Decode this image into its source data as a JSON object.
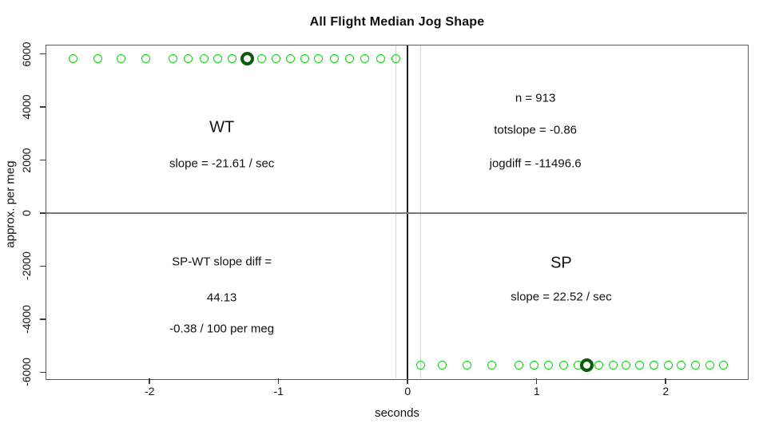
{
  "chart_data": {
    "type": "scatter",
    "title": "All Flight Median Jog Shape",
    "xlabel": "seconds",
    "ylabel": "approx. per meg",
    "xlim": [
      -2.8,
      2.63
    ],
    "ylim": [
      -6230,
      6320
    ],
    "xticks": [
      -2,
      -1,
      0,
      1,
      2
    ],
    "yticks": [
      -6000,
      -4000,
      -2000,
      0,
      2000,
      4000,
      6000
    ],
    "grid": false,
    "legend": "none",
    "frame_color": "#5a5a5a",
    "marker_color": "#00d800",
    "highlight_color": "#0a5c0a",
    "series": [
      {
        "name": "WT",
        "marker": "open-circle",
        "color": "#00d800",
        "y": 5830,
        "x": [
          -2.59,
          -2.4,
          -2.22,
          -2.03,
          -1.82,
          -1.7,
          -1.58,
          -1.47,
          -1.36,
          -1.24,
          -1.13,
          -1.02,
          -0.91,
          -0.8,
          -0.69,
          -0.57,
          -0.45,
          -0.33,
          -0.21,
          -0.09
        ],
        "highlight_index": 9,
        "highlight_x": -1.24
      },
      {
        "name": "SP",
        "marker": "open-circle",
        "color": "#00d800",
        "y": -5720,
        "x": [
          0.1,
          0.27,
          0.46,
          0.65,
          0.86,
          0.98,
          1.09,
          1.21,
          1.32,
          1.39,
          1.48,
          1.59,
          1.69,
          1.8,
          1.91,
          2.02,
          2.12,
          2.23,
          2.34,
          2.45
        ],
        "highlight_index": 9,
        "highlight_x": 1.39
      }
    ],
    "vlines": [
      {
        "id": "window-start",
        "x": -0.09,
        "color": "#d4d4d4"
      },
      {
        "id": "zero",
        "x": 0,
        "color": "#1c1c1c"
      },
      {
        "id": "window-end",
        "x": 0.1,
        "color": "#d4d4d4"
      }
    ],
    "hlines": [
      {
        "id": "zero",
        "y": 0,
        "color": "#7a7a7a"
      }
    ],
    "annotations": [
      {
        "id": "wt-label",
        "text": "WT",
        "x": -1.44,
        "y": 3220,
        "font_size": 20
      },
      {
        "id": "wt-slope",
        "text": "slope = -21.61 / sec",
        "x": -1.44,
        "y": 1870,
        "font_size": 15
      },
      {
        "id": "n-count",
        "text": "n = 913",
        "x": 0.99,
        "y": 4330,
        "font_size": 15
      },
      {
        "id": "totslope",
        "text": "totslope = -0.86",
        "x": 0.99,
        "y": 3130,
        "font_size": 15
      },
      {
        "id": "jogdiff",
        "text": "jogdiff = -11496.6",
        "x": 0.99,
        "y": 1870,
        "font_size": 15
      },
      {
        "id": "spwt-diff-label",
        "text": "SP-WT slope diff =",
        "x": -1.44,
        "y": -1840,
        "font_size": 15
      },
      {
        "id": "spwt-diff-value",
        "text": "44.13",
        "x": -1.44,
        "y": -3190,
        "font_size": 15
      },
      {
        "id": "spwt-diff-units",
        "text": "-0.38 / 100 per meg",
        "x": -1.44,
        "y": -4360,
        "font_size": 15
      },
      {
        "id": "sp-label",
        "text": "SP",
        "x": 1.19,
        "y": -1900,
        "font_size": 20
      },
      {
        "id": "sp-slope",
        "text": "slope = 22.52 / sec",
        "x": 1.19,
        "y": -3160,
        "font_size": 15
      }
    ]
  }
}
